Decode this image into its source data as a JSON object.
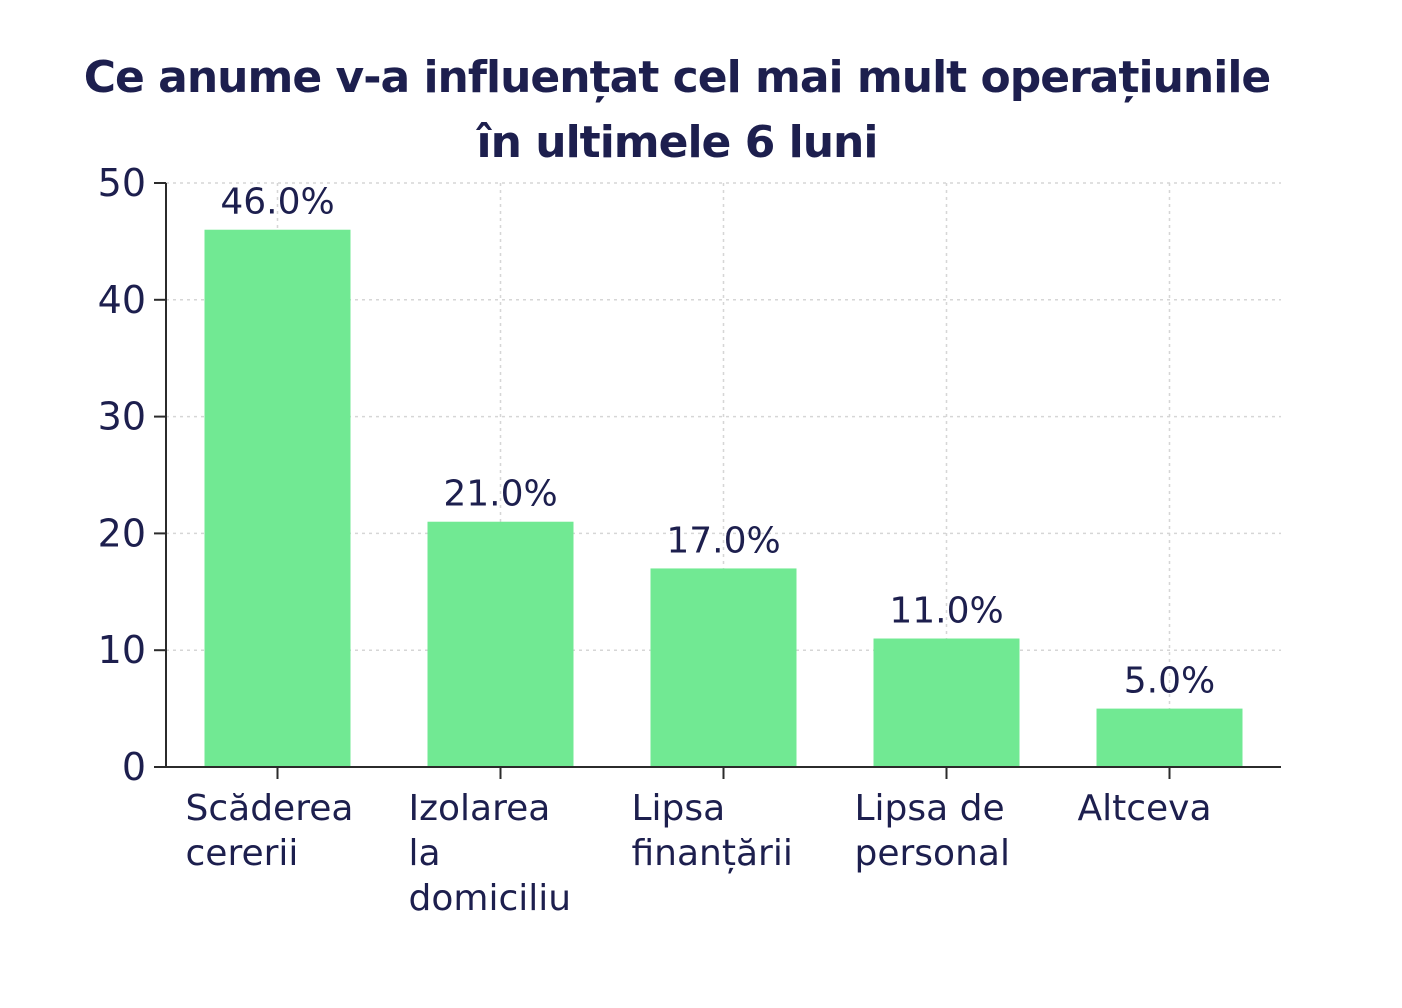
{
  "chart_data": {
    "type": "bar",
    "title_lines": [
      "Ce anume v-a influențat cel mai mult operațiunile",
      "în ultimele 6 luni"
    ],
    "categories": [
      [
        "Scăderea",
        "cererii"
      ],
      [
        "Izolarea",
        "la",
        "domiciliu"
      ],
      [
        "Lipsa",
        "finanțării"
      ],
      [
        "Lipsa de",
        "personal"
      ],
      [
        "Altceva"
      ]
    ],
    "values": [
      46.0,
      21.0,
      17.0,
      11.0,
      5.0
    ],
    "value_labels": [
      "46.0%",
      "21.0%",
      "17.0%",
      "11.0%",
      "5.0%"
    ],
    "xlabel": "",
    "ylabel": "",
    "ylim": [
      0,
      50
    ],
    "yticks": [
      "0",
      "10",
      "20",
      "30",
      "40",
      "50"
    ],
    "grid": true,
    "bar_color": "#71e993",
    "text_color": "#1d1f4e"
  }
}
